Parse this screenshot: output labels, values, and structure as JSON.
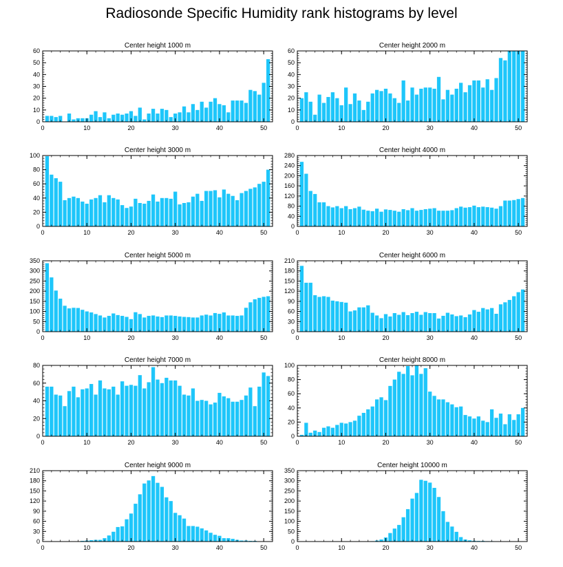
{
  "title": "Radiosonde Specific Humidity rank histograms by level",
  "colors": {
    "bar": "#1ec6fa",
    "axis": "#000000",
    "background": "#ffffff"
  },
  "chart_data": [
    {
      "type": "bar",
      "title": "Center height 1000 m",
      "xlim": [
        0,
        52
      ],
      "ylim": [
        0,
        60
      ],
      "xticks": [
        0,
        10,
        20,
        30,
        40,
        50
      ],
      "yticks": [
        0,
        10,
        20,
        30,
        40,
        50,
        60
      ],
      "categories": [
        1,
        2,
        3,
        4,
        5,
        6,
        7,
        8,
        9,
        10,
        11,
        12,
        13,
        14,
        15,
        16,
        17,
        18,
        19,
        20,
        21,
        22,
        23,
        24,
        25,
        26,
        27,
        28,
        29,
        30,
        31,
        32,
        33,
        34,
        35,
        36,
        37,
        38,
        39,
        40,
        41,
        42,
        43,
        44,
        45,
        46,
        47,
        48,
        49,
        50,
        51
      ],
      "values": [
        5,
        5,
        4,
        5,
        0,
        7,
        2,
        3,
        3,
        3,
        6,
        9,
        4,
        8,
        3,
        6,
        7,
        6,
        7,
        9,
        5,
        12,
        2,
        7,
        11,
        7,
        11,
        10,
        4,
        7,
        8,
        13,
        8,
        15,
        10,
        17,
        12,
        17,
        20,
        15,
        14,
        8,
        18,
        18,
        18,
        16,
        27,
        26,
        23,
        33,
        53
      ]
    },
    {
      "type": "bar",
      "title": "Center height 2000 m",
      "xlim": [
        0,
        52
      ],
      "ylim": [
        0,
        60
      ],
      "xticks": [
        0,
        10,
        20,
        30,
        40,
        50
      ],
      "yticks": [
        0,
        10,
        20,
        30,
        40,
        50,
        60
      ],
      "categories": [
        1,
        2,
        3,
        4,
        5,
        6,
        7,
        8,
        9,
        10,
        11,
        12,
        13,
        14,
        15,
        16,
        17,
        18,
        19,
        20,
        21,
        22,
        23,
        24,
        25,
        26,
        27,
        28,
        29,
        30,
        31,
        32,
        33,
        34,
        35,
        36,
        37,
        38,
        39,
        40,
        41,
        42,
        43,
        44,
        45,
        46,
        47,
        48,
        49,
        50,
        51
      ],
      "values": [
        20,
        25,
        17,
        6,
        23,
        16,
        21,
        25,
        20,
        14,
        29,
        15,
        24,
        18,
        10,
        17,
        24,
        27,
        26,
        28,
        24,
        20,
        16,
        35,
        18,
        29,
        23,
        28,
        29,
        29,
        28,
        38,
        19,
        27,
        23,
        28,
        33,
        25,
        31,
        35,
        35,
        29,
        36,
        27,
        37,
        54,
        52,
        60,
        60,
        60,
        60
      ]
    },
    {
      "type": "bar",
      "title": "Center height 3000 m",
      "xlim": [
        0,
        52
      ],
      "ylim": [
        0,
        100
      ],
      "xticks": [
        0,
        10,
        20,
        30,
        40,
        50
      ],
      "yticks": [
        0,
        20,
        40,
        60,
        80,
        100
      ],
      "categories": [
        1,
        2,
        3,
        4,
        5,
        6,
        7,
        8,
        9,
        10,
        11,
        12,
        13,
        14,
        15,
        16,
        17,
        18,
        19,
        20,
        21,
        22,
        23,
        24,
        25,
        26,
        27,
        28,
        29,
        30,
        31,
        32,
        33,
        34,
        35,
        36,
        37,
        38,
        39,
        40,
        41,
        42,
        43,
        44,
        45,
        46,
        47,
        48,
        49,
        50,
        51
      ],
      "values": [
        99,
        73,
        68,
        63,
        37,
        40,
        42,
        40,
        35,
        32,
        38,
        40,
        44,
        34,
        44,
        40,
        38,
        30,
        26,
        28,
        39,
        33,
        32,
        36,
        45,
        35,
        40,
        40,
        39,
        49,
        31,
        33,
        34,
        42,
        46,
        36,
        50,
        50,
        51,
        41,
        52,
        46,
        43,
        37,
        47,
        50,
        53,
        55,
        60,
        63,
        80
      ]
    },
    {
      "type": "bar",
      "title": "Center height 4000 m",
      "xlim": [
        0,
        52
      ],
      "ylim": [
        0,
        280
      ],
      "xticks": [
        0,
        10,
        20,
        30,
        40,
        50
      ],
      "yticks": [
        0,
        40,
        80,
        120,
        160,
        200,
        240,
        280
      ],
      "categories": [
        1,
        2,
        3,
        4,
        5,
        6,
        7,
        8,
        9,
        10,
        11,
        12,
        13,
        14,
        15,
        16,
        17,
        18,
        19,
        20,
        21,
        22,
        23,
        24,
        25,
        26,
        27,
        28,
        29,
        30,
        31,
        32,
        33,
        34,
        35,
        36,
        37,
        38,
        39,
        40,
        41,
        42,
        43,
        44,
        45,
        46,
        47,
        48,
        49,
        50,
        51
      ],
      "values": [
        255,
        208,
        140,
        128,
        95,
        95,
        80,
        75,
        80,
        72,
        80,
        68,
        72,
        78,
        66,
        62,
        60,
        70,
        58,
        67,
        65,
        62,
        58,
        68,
        64,
        72,
        62,
        65,
        68,
        70,
        72,
        62,
        62,
        62,
        64,
        72,
        78,
        74,
        76,
        82,
        76,
        78,
        76,
        74,
        70,
        80,
        102,
        102,
        104,
        108,
        112
      ]
    },
    {
      "type": "bar",
      "title": "Center height 5000 m",
      "xlim": [
        0,
        52
      ],
      "ylim": [
        0,
        350
      ],
      "xticks": [
        0,
        10,
        20,
        30,
        40,
        50
      ],
      "yticks": [
        0,
        50,
        100,
        150,
        200,
        250,
        300,
        350
      ],
      "categories": [
        1,
        2,
        3,
        4,
        5,
        6,
        7,
        8,
        9,
        10,
        11,
        12,
        13,
        14,
        15,
        16,
        17,
        18,
        19,
        20,
        21,
        22,
        23,
        24,
        25,
        26,
        27,
        28,
        29,
        30,
        31,
        32,
        33,
        34,
        35,
        36,
        37,
        38,
        39,
        40,
        41,
        42,
        43,
        44,
        45,
        46,
        47,
        48,
        49,
        50,
        51
      ],
      "values": [
        338,
        268,
        203,
        163,
        128,
        115,
        118,
        117,
        108,
        100,
        95,
        87,
        80,
        70,
        78,
        90,
        82,
        78,
        73,
        62,
        96,
        87,
        70,
        78,
        80,
        75,
        72,
        80,
        80,
        78,
        75,
        73,
        72,
        70,
        70,
        80,
        84,
        80,
        92,
        88,
        95,
        80,
        80,
        78,
        80,
        118,
        145,
        160,
        167,
        172,
        175
      ]
    },
    {
      "type": "bar",
      "title": "Center height 6000 m",
      "xlim": [
        0,
        52
      ],
      "ylim": [
        0,
        210
      ],
      "xticks": [
        0,
        10,
        20,
        30,
        40,
        50
      ],
      "yticks": [
        0,
        30,
        60,
        90,
        120,
        150,
        180,
        210
      ],
      "categories": [
        1,
        2,
        3,
        4,
        5,
        6,
        7,
        8,
        9,
        10,
        11,
        12,
        13,
        14,
        15,
        16,
        17,
        18,
        19,
        20,
        21,
        22,
        23,
        24,
        25,
        26,
        27,
        28,
        29,
        30,
        31,
        32,
        33,
        34,
        35,
        36,
        37,
        38,
        39,
        40,
        41,
        42,
        43,
        44,
        45,
        46,
        47,
        48,
        49,
        50,
        51
      ],
      "values": [
        195,
        145,
        145,
        108,
        103,
        105,
        103,
        92,
        90,
        88,
        86,
        60,
        63,
        72,
        72,
        78,
        56,
        48,
        40,
        52,
        45,
        55,
        50,
        58,
        49,
        55,
        59,
        50,
        58,
        55,
        55,
        39,
        47,
        56,
        51,
        46,
        48,
        43,
        51,
        64,
        59,
        70,
        66,
        70,
        53,
        81,
        87,
        94,
        105,
        117,
        125
      ]
    },
    {
      "type": "bar",
      "title": "Center height 7000 m",
      "xlim": [
        0,
        52
      ],
      "ylim": [
        0,
        80
      ],
      "xticks": [
        0,
        10,
        20,
        30,
        40,
        50
      ],
      "yticks": [
        0,
        20,
        40,
        60,
        80
      ],
      "categories": [
        1,
        2,
        3,
        4,
        5,
        6,
        7,
        8,
        9,
        10,
        11,
        12,
        13,
        14,
        15,
        16,
        17,
        18,
        19,
        20,
        21,
        22,
        23,
        24,
        25,
        26,
        27,
        28,
        29,
        30,
        31,
        32,
        33,
        34,
        35,
        36,
        37,
        38,
        39,
        40,
        41,
        42,
        43,
        44,
        45,
        46,
        47,
        48,
        49,
        50,
        51
      ],
      "values": [
        56,
        56,
        47,
        46,
        34,
        51,
        56,
        44,
        53,
        54,
        59,
        47,
        63,
        54,
        53,
        56,
        47,
        62,
        57,
        58,
        57,
        69,
        54,
        61,
        78,
        64,
        60,
        66,
        63,
        63,
        57,
        47,
        46,
        54,
        40,
        41,
        40,
        36,
        38,
        49,
        45,
        43,
        39,
        39,
        41,
        46,
        55,
        34,
        56,
        72,
        68
      ]
    },
    {
      "type": "bar",
      "title": "Center height 8000 m",
      "xlim": [
        0,
        52
      ],
      "ylim": [
        0,
        100
      ],
      "xticks": [
        0,
        10,
        20,
        30,
        40,
        50
      ],
      "yticks": [
        0,
        20,
        40,
        60,
        80,
        100
      ],
      "categories": [
        1,
        2,
        3,
        4,
        5,
        6,
        7,
        8,
        9,
        10,
        11,
        12,
        13,
        14,
        15,
        16,
        17,
        18,
        19,
        20,
        21,
        22,
        23,
        24,
        25,
        26,
        27,
        28,
        29,
        30,
        31,
        32,
        33,
        34,
        35,
        36,
        37,
        38,
        39,
        40,
        41,
        42,
        43,
        44,
        45,
        46,
        47,
        48,
        49,
        50,
        51
      ],
      "values": [
        2,
        19,
        5,
        8,
        6,
        12,
        14,
        12,
        16,
        19,
        18,
        20,
        22,
        29,
        33,
        38,
        42,
        52,
        55,
        51,
        71,
        80,
        91,
        88,
        99,
        86,
        100,
        88,
        96,
        63,
        57,
        52,
        52,
        48,
        45,
        41,
        42,
        30,
        28,
        25,
        28,
        22,
        20,
        38,
        26,
        32,
        17,
        31,
        23,
        31,
        40
      ]
    },
    {
      "type": "bar",
      "title": "Center height 9000 m",
      "xlim": [
        0,
        52
      ],
      "ylim": [
        0,
        210
      ],
      "xticks": [
        0,
        10,
        20,
        30,
        40,
        50
      ],
      "yticks": [
        0,
        30,
        60,
        90,
        120,
        150,
        180,
        210
      ],
      "categories": [
        1,
        2,
        3,
        4,
        5,
        6,
        7,
        8,
        9,
        10,
        11,
        12,
        13,
        14,
        15,
        16,
        17,
        18,
        19,
        20,
        21,
        22,
        23,
        24,
        25,
        26,
        27,
        28,
        29,
        30,
        31,
        32,
        33,
        34,
        35,
        36,
        37,
        38,
        39,
        40,
        41,
        42,
        43,
        44,
        45,
        46,
        47,
        48,
        49,
        50,
        51
      ],
      "values": [
        0,
        0,
        0,
        0,
        0,
        0,
        0,
        0,
        2,
        3,
        4,
        5,
        5,
        10,
        18,
        29,
        43,
        45,
        66,
        83,
        112,
        140,
        172,
        181,
        194,
        174,
        162,
        131,
        120,
        85,
        78,
        68,
        46,
        46,
        44,
        39,
        33,
        26,
        20,
        17,
        10,
        10,
        8,
        5,
        3,
        3,
        2,
        2,
        1,
        1,
        0
      ]
    },
    {
      "type": "bar",
      "title": "Center height 10000 m",
      "xlim": [
        0,
        52
      ],
      "ylim": [
        0,
        350
      ],
      "xticks": [
        0,
        10,
        20,
        30,
        40,
        50
      ],
      "yticks": [
        0,
        50,
        100,
        150,
        200,
        250,
        300,
        350
      ],
      "categories": [
        1,
        2,
        3,
        4,
        5,
        6,
        7,
        8,
        9,
        10,
        11,
        12,
        13,
        14,
        15,
        16,
        17,
        18,
        19,
        20,
        21,
        22,
        23,
        24,
        25,
        26,
        27,
        28,
        29,
        30,
        31,
        32,
        33,
        34,
        35,
        36,
        37,
        38,
        39,
        40,
        41,
        42,
        43,
        44,
        45,
        46,
        47,
        48,
        49,
        50,
        51
      ],
      "values": [
        0,
        0,
        0,
        0,
        0,
        0,
        0,
        0,
        0,
        0,
        0,
        0,
        0,
        0,
        0,
        0,
        2,
        5,
        10,
        20,
        42,
        64,
        82,
        120,
        160,
        212,
        240,
        305,
        300,
        291,
        265,
        220,
        150,
        97,
        74,
        48,
        22,
        10,
        6,
        4,
        3,
        3,
        2,
        2,
        1,
        1,
        0,
        0,
        0,
        0,
        0
      ]
    }
  ]
}
